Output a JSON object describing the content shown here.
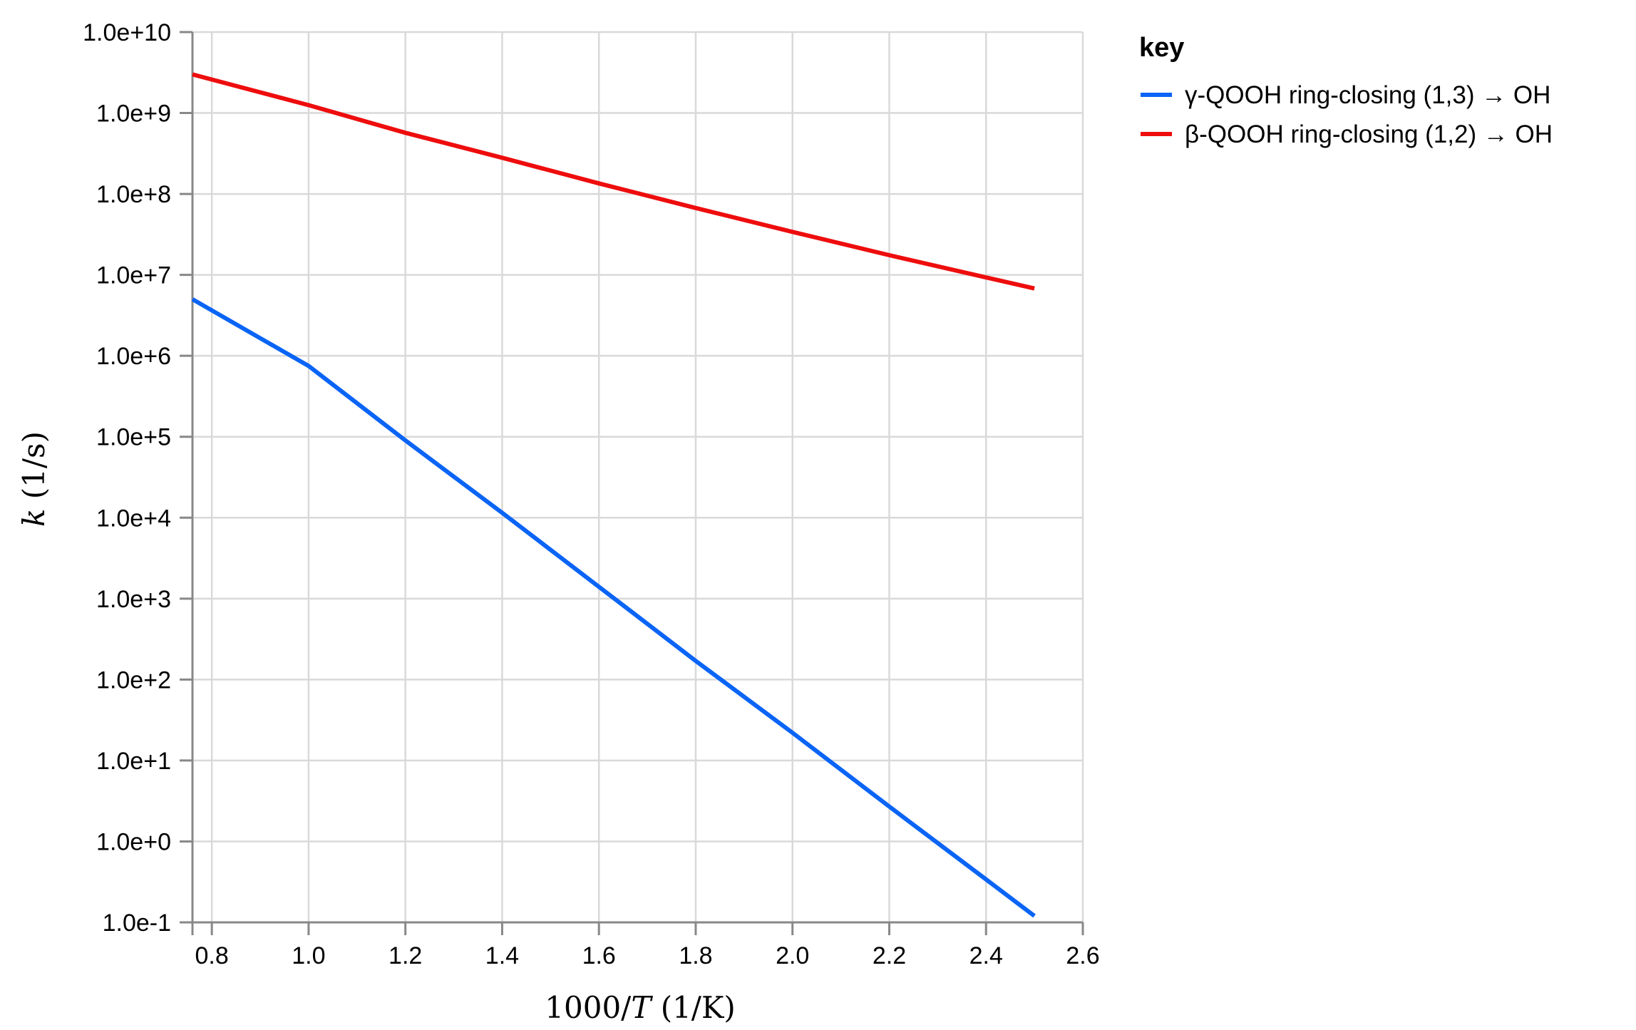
{
  "chart_data": {
    "type": "line",
    "xlabel": "1000/T (1/K)",
    "ylabel": "k (1/s)",
    "xlim": [
      0.76,
      2.6
    ],
    "ylim": [
      0.1,
      10000000000
    ],
    "yscale": "log",
    "x_ticks": [
      0.8,
      1.0,
      1.2,
      1.4,
      1.6,
      1.8,
      2.0,
      2.2,
      2.4,
      2.6
    ],
    "x_tick_labels": [
      "0.8",
      "1.0",
      "1.2",
      "1.4",
      "1.6",
      "1.8",
      "2.0",
      "2.2",
      "2.4",
      "2.6"
    ],
    "y_ticks": [
      0.1,
      1,
      10,
      100,
      1000,
      10000,
      100000,
      1000000,
      10000000,
      100000000,
      1000000000,
      10000000000
    ],
    "y_tick_labels": [
      "1.0e-1",
      "1.0e+0",
      "1.0e+1",
      "1.0e+2",
      "1.0e+3",
      "1.0e+4",
      "1.0e+5",
      "1.0e+6",
      "1.0e+7",
      "1.0e+8",
      "1.0e+9",
      "1.0e+10"
    ],
    "grid": true,
    "legend": {
      "title": "key",
      "placement": "right"
    },
    "series": [
      {
        "name": "γ-QOOH ring-closing (1,3) → OH",
        "color": "#0a64f5",
        "x": [
          0.76,
          1.0,
          1.2,
          1.4,
          1.6,
          1.8,
          2.0,
          2.2,
          2.4,
          2.5
        ],
        "y": [
          5000000,
          750000,
          90000,
          11500,
          1400,
          170,
          22,
          2.7,
          0.34,
          0.12
        ]
      },
      {
        "name": "β-QOOH ring-closing (1,2) → OH",
        "color": "#ee0d0d",
        "x": [
          0.76,
          1.0,
          1.2,
          1.4,
          1.6,
          1.8,
          2.0,
          2.2,
          2.4,
          2.5
        ],
        "y": [
          3000000000,
          1250000000,
          570000000,
          280000000,
          135000000,
          67000000,
          34000000,
          17500000,
          9300000,
          6800000
        ]
      }
    ]
  }
}
